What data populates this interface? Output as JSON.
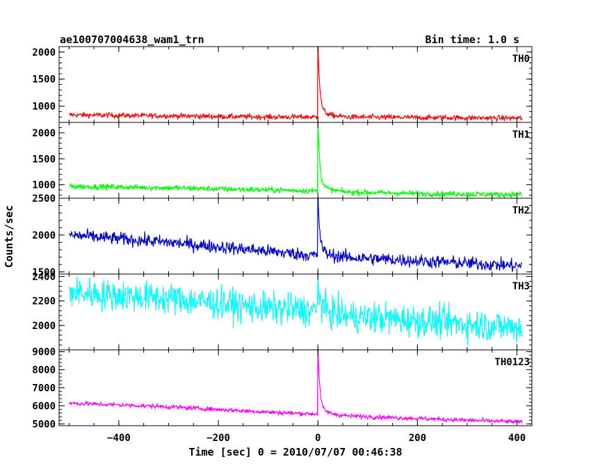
{
  "header": {
    "title": "ae100707004638_wam1_trn",
    "bin_time": "Bin time: 1.0 s"
  },
  "chart_data": {
    "type": "line",
    "xlabel": "Time [sec] 0 = 2010/07/07 00:46:38",
    "ylabel": "Counts/sec",
    "xlim": [
      -520,
      430
    ],
    "x_ticks": [
      -400,
      -200,
      0,
      200,
      400
    ],
    "x_tick_labels": [
      "−400",
      "−200",
      "0",
      "200",
      "400"
    ],
    "x_data_range": [
      -500,
      410
    ],
    "grid": false,
    "panels": [
      {
        "name": "TH0",
        "color": "#ff0000",
        "ylim": [
          700,
          2100
        ],
        "yticks": [
          1000,
          1500,
          2000
        ],
        "trend": [
          [
            -500,
            840
          ],
          [
            -300,
            820
          ],
          [
            -100,
            800
          ],
          [
            -2,
            800
          ],
          [
            50,
            800
          ],
          [
            200,
            790
          ],
          [
            410,
            780
          ]
        ],
        "noise": 25,
        "peak": {
          "x": 0,
          "value": 2100
        }
      },
      {
        "name": "TH1",
        "color": "#00ff00",
        "ylim": [
          740,
          2200
        ],
        "yticks": [
          1000,
          1500,
          2000
        ],
        "trend": [
          [
            -500,
            970
          ],
          [
            -300,
            940
          ],
          [
            -100,
            900
          ],
          [
            -2,
            880
          ],
          [
            50,
            860
          ],
          [
            200,
            830
          ],
          [
            410,
            810
          ]
        ],
        "noise": 28,
        "peak": {
          "x": 0,
          "value": 2150
        }
      },
      {
        "name": "TH2",
        "color": "#0000cd",
        "ylim": [
          1470,
          2500
        ],
        "yticks": [
          1500,
          2000,
          2500
        ],
        "trend": [
          [
            -500,
            2000
          ],
          [
            -300,
            1900
          ],
          [
            -100,
            1780
          ],
          [
            -2,
            1720
          ],
          [
            50,
            1700
          ],
          [
            200,
            1650
          ],
          [
            410,
            1580
          ]
        ],
        "noise": 45,
        "peak": {
          "x": 0,
          "value": 2500
        }
      },
      {
        "name": "TH3",
        "color": "#00ffff",
        "ylim": [
          1800,
          2420
        ],
        "yticks": [
          2000,
          2200,
          2400
        ],
        "trend": [
          [
            -500,
            2270
          ],
          [
            -300,
            2220
          ],
          [
            -100,
            2140
          ],
          [
            -2,
            2120
          ],
          [
            50,
            2080
          ],
          [
            200,
            2040
          ],
          [
            410,
            1980
          ]
        ],
        "noise": 65,
        "peak": {
          "x": 0,
          "value": 2400
        }
      },
      {
        "name": "TH0123",
        "color": "#ff00ff",
        "ylim": [
          4900,
          9100
        ],
        "yticks": [
          5000,
          6000,
          7000,
          8000,
          9000
        ],
        "trend": [
          [
            -500,
            6150
          ],
          [
            -300,
            5950
          ],
          [
            -100,
            5650
          ],
          [
            -2,
            5550
          ],
          [
            50,
            5450
          ],
          [
            200,
            5300
          ],
          [
            410,
            5100
          ]
        ],
        "noise": 60,
        "peak": {
          "x": 0,
          "value": 9000
        }
      }
    ]
  }
}
